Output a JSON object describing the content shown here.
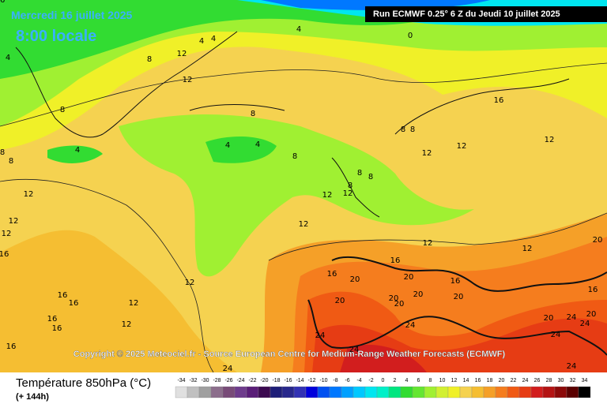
{
  "header": {
    "date": "Mercredi 16 juillet 2025",
    "time": "8:00 locale",
    "run": "Run ECMWF 0.25° 6 Z du Jeudi 10 juillet 2025"
  },
  "copyright": "Copyright © 2025 Meteociel.fr - Source European Centre for Medium-Range Weather Forecasts (ECMWF)",
  "legend": {
    "title": "Température 850hPa (°C)",
    "subtitle": "(+ 144h)",
    "scale": [
      -34,
      -32,
      -30,
      -28,
      -26,
      -24,
      -22,
      -20,
      -18,
      -16,
      -14,
      -12,
      -10,
      -8,
      -6,
      -4,
      -2,
      0,
      2,
      4,
      6,
      8,
      10,
      12,
      14,
      16,
      18,
      20,
      22,
      24,
      26,
      28,
      30,
      32,
      34
    ],
    "colors": [
      "#e0e0e0",
      "#c0c0c0",
      "#a0a0a0",
      "#8c6e8c",
      "#784b78",
      "#6e3c8c",
      "#5a1e78",
      "#3c0a50",
      "#1e1e78",
      "#28288c",
      "#3232b4",
      "#0000dc",
      "#0050f0",
      "#0078ff",
      "#00a0ff",
      "#00c8ff",
      "#00e6f0",
      "#00f0c8",
      "#00e680",
      "#32dc32",
      "#64e632",
      "#a0f032",
      "#d2f032",
      "#f0f028",
      "#f5d250",
      "#f5be32",
      "#f5a028",
      "#f57d1e",
      "#f05a14",
      "#e63c14",
      "#d21e1e",
      "#b41414",
      "#8c0a0a",
      "#5a0000",
      "#000000"
    ]
  },
  "map": {
    "contour_labels": [
      4,
      0,
      4,
      4,
      4,
      12,
      8,
      12,
      8,
      8,
      4,
      4,
      4,
      8,
      8,
      8,
      8,
      8,
      12,
      12,
      16,
      12,
      8,
      8,
      8,
      12,
      12,
      12,
      12,
      12,
      12,
      12,
      12,
      16,
      16,
      16,
      12,
      12,
      12,
      16,
      16,
      16,
      16,
      16,
      16,
      16,
      20,
      20,
      20,
      20,
      20,
      20,
      20,
      20,
      24,
      24,
      20,
      24,
      24,
      20,
      24,
      24,
      24,
      24,
      16
    ]
  }
}
